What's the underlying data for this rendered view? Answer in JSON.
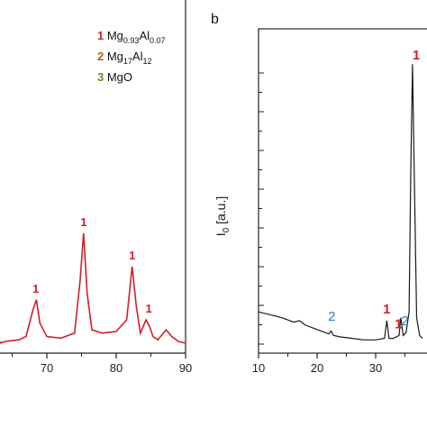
{
  "colors": {
    "panel_a_line": "#d21f2b",
    "panel_b_line": "#1a1a1a",
    "peak_1": "#d21f2b",
    "peak_2": "#3a78c7",
    "peak_3": "#8a7d1f"
  },
  "legend": [
    {
      "number": "1",
      "base": "Mg",
      "sub1": "0.93",
      "mid": "Al",
      "sub2": "0.07",
      "color": "#d21f2b"
    },
    {
      "number": "2",
      "base": "Mg",
      "sub1": "17",
      "mid": "Al",
      "sub2": "12",
      "color": "#b65a1e"
    },
    {
      "number": "3",
      "base": "MgO",
      "sub1": "",
      "mid": "",
      "sub2": "",
      "color": "#8a7d1f"
    }
  ],
  "chart_data": [
    {
      "panel": "a",
      "type": "line",
      "title": "",
      "xlabel": "",
      "ylabel": "",
      "xlim": [
        10,
        90
      ],
      "xticks": [
        70,
        80,
        90
      ],
      "x": [
        58,
        60,
        62,
        64,
        66,
        67,
        68,
        68.5,
        69,
        70,
        72,
        74,
        74.8,
        75.3,
        75.8,
        76.5,
        78,
        80,
        81.5,
        82.3,
        82.9,
        83.5,
        84.3,
        84.8,
        85.3,
        86,
        87.2,
        88,
        89,
        90
      ],
      "y": [
        0.03,
        0.035,
        0.03,
        0.035,
        0.04,
        0.05,
        0.13,
        0.16,
        0.09,
        0.05,
        0.045,
        0.06,
        0.22,
        0.36,
        0.18,
        0.07,
        0.06,
        0.065,
        0.1,
        0.26,
        0.14,
        0.06,
        0.1,
        0.08,
        0.05,
        0.04,
        0.07,
        0.05,
        0.035,
        0.03
      ],
      "ylim": [
        0,
        1
      ],
      "peak_labels": [
        {
          "x": 68.4,
          "label": "1",
          "phase": 1
        },
        {
          "x": 75.3,
          "label": "1",
          "phase": 1
        },
        {
          "x": 82.3,
          "label": "1",
          "phase": 1
        },
        {
          "x": 84.3,
          "label": "1",
          "phase": 1
        }
      ]
    },
    {
      "panel": "b",
      "panel_label": "b",
      "type": "line",
      "title": "",
      "xlabel": "",
      "ylabel": "I₀ [a.u.]",
      "ylabel_main": "I",
      "ylabel_sub": "0",
      "ylabel_rest": " [a.u.]",
      "xlim": [
        10,
        40
      ],
      "xticks": [
        10,
        20,
        30
      ],
      "x": [
        10,
        12,
        14,
        16,
        17,
        18,
        20,
        22,
        22.4,
        22.8,
        24,
        26,
        28,
        30,
        31.5,
        31.9,
        32.3,
        33,
        34,
        34.3,
        34.7,
        35.2,
        35.7,
        36.0,
        36.3,
        36.6,
        37.0,
        37.5,
        38
      ],
      "y": [
        0.14,
        0.13,
        0.12,
        0.105,
        0.11,
        0.095,
        0.08,
        0.065,
        0.075,
        0.06,
        0.055,
        0.05,
        0.045,
        0.045,
        0.05,
        0.11,
        0.05,
        0.05,
        0.06,
        0.12,
        0.06,
        0.07,
        0.14,
        0.62,
        0.98,
        0.6,
        0.12,
        0.06,
        0.05
      ],
      "ylim": [
        0,
        1.05
      ],
      "peak_labels": [
        {
          "x": 22.5,
          "label": "2",
          "phase": 2
        },
        {
          "x": 31.9,
          "label": "1",
          "phase": 1
        },
        {
          "x": 33.9,
          "label": "1",
          "phase": 1
        },
        {
          "x": 35.0,
          "label": "2",
          "phase": 2
        },
        {
          "x": 36.3,
          "label": "1",
          "phase": 1
        }
      ]
    }
  ]
}
